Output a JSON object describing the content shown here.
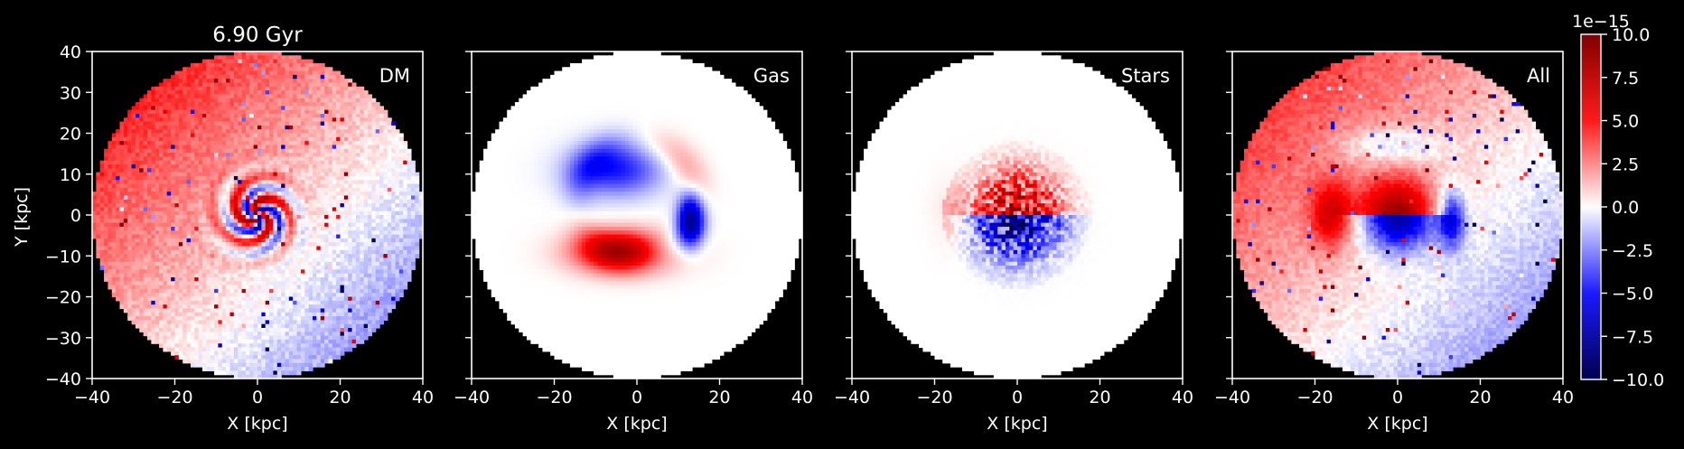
{
  "chart_data": {
    "type": "heatmap",
    "title": "6.90 Gyr",
    "panels": [
      {
        "name": "DM",
        "label": "DM"
      },
      {
        "name": "Gas",
        "label": "Gas"
      },
      {
        "name": "Stars",
        "label": "Stars"
      },
      {
        "name": "All",
        "label": "All"
      }
    ],
    "xlabel": "X [kpc]",
    "ylabel": "Y [kpc]",
    "xlim": [
      -40,
      40
    ],
    "ylim": [
      -40,
      40
    ],
    "xticks": [
      -40,
      -20,
      0,
      20,
      40
    ],
    "xtick_labels": [
      "−40",
      "−20",
      "0",
      "20",
      "40"
    ],
    "yticks": [
      40,
      30,
      20,
      10,
      0,
      -10,
      -20,
      -30,
      -40
    ],
    "ytick_labels": [
      "40",
      "30",
      "20",
      "10",
      "0",
      "−10",
      "−20",
      "−30",
      "−40"
    ],
    "disk_radius_kpc": 40,
    "colorbar": {
      "colormap": "seismic",
      "range": [
        -10.0,
        10.0
      ],
      "offset_text": "1e−15",
      "ticks": [
        10.0,
        7.5,
        5.0,
        2.5,
        0.0,
        -2.5,
        -5.0,
        -7.5,
        -10.0
      ],
      "tick_labels": [
        "10.0",
        "7.5",
        "5.0",
        "2.5",
        "0.0",
        "−2.5",
        "−5.0",
        "−7.5",
        "−10.0"
      ]
    },
    "colors": {
      "background": "#000000",
      "foreground": "#ffffff",
      "positive": "#cc0000",
      "negative": "#0000cc",
      "zero": "#ffffff"
    }
  }
}
